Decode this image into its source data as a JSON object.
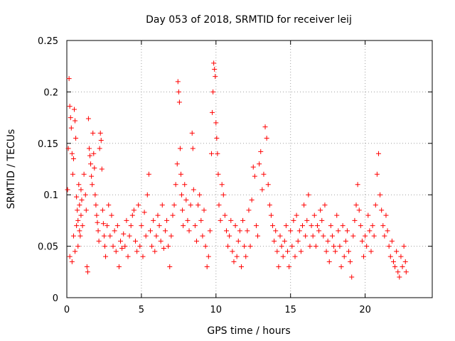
{
  "chart_data": {
    "type": "scatter",
    "title": "Day 053 of 2018, SRMTID for receiver leij",
    "xlabel": "GPS time / hours",
    "ylabel": "SRMTID / TECUs",
    "xlim": [
      0,
      24.5
    ],
    "ylim": [
      0,
      0.25
    ],
    "xticks": [
      0,
      5,
      10,
      15,
      20
    ],
    "xtick_labels": [
      "0",
      "5",
      "10",
      "15",
      "20"
    ],
    "yticks": [
      0,
      0.05,
      0.1,
      0.15,
      0.2,
      0.25
    ],
    "ytick_labels": [
      "0",
      "0.05",
      "0.1",
      "0.15",
      "0.2",
      "0.25"
    ],
    "grid": true,
    "marker": "+",
    "color": "#ff0000",
    "series": [
      {
        "name": "leij",
        "points": [
          [
            0.05,
            0.105
          ],
          [
            0.1,
            0.145
          ],
          [
            0.15,
            0.213
          ],
          [
            0.2,
            0.186
          ],
          [
            0.25,
            0.175
          ],
          [
            0.3,
            0.165
          ],
          [
            0.35,
            0.14
          ],
          [
            0.4,
            0.12
          ],
          [
            0.45,
            0.135
          ],
          [
            0.5,
            0.183
          ],
          [
            0.55,
            0.172
          ],
          [
            0.6,
            0.155
          ],
          [
            0.65,
            0.098
          ],
          [
            0.7,
            0.085
          ],
          [
            0.75,
            0.075
          ],
          [
            0.8,
            0.11
          ],
          [
            0.85,
            0.09
          ],
          [
            0.9,
            0.06
          ],
          [
            0.95,
            0.105
          ],
          [
            1.0,
            0.095
          ],
          [
            0.2,
            0.04
          ],
          [
            0.35,
            0.035
          ],
          [
            0.45,
            0.06
          ],
          [
            0.55,
            0.045
          ],
          [
            0.65,
            0.07
          ],
          [
            0.75,
            0.05
          ],
          [
            0.85,
            0.065
          ],
          [
            0.95,
            0.08
          ],
          [
            1.05,
            0.07
          ],
          [
            1.15,
            0.12
          ],
          [
            1.25,
            0.1
          ],
          [
            1.3,
            0.085
          ],
          [
            1.35,
            0.03
          ],
          [
            1.4,
            0.025
          ],
          [
            1.45,
            0.174
          ],
          [
            1.5,
            0.145
          ],
          [
            1.55,
            0.138
          ],
          [
            1.6,
            0.13
          ],
          [
            1.65,
            0.118
          ],
          [
            1.7,
            0.11
          ],
          [
            1.75,
            0.16
          ],
          [
            1.8,
            0.14
          ],
          [
            1.85,
            0.126
          ],
          [
            1.9,
            0.1
          ],
          [
            1.95,
            0.09
          ],
          [
            2.0,
            0.08
          ],
          [
            2.05,
            0.073
          ],
          [
            2.1,
            0.065
          ],
          [
            2.15,
            0.055
          ],
          [
            2.2,
            0.145
          ],
          [
            2.25,
            0.16
          ],
          [
            2.3,
            0.153
          ],
          [
            2.35,
            0.125
          ],
          [
            2.4,
            0.085
          ],
          [
            2.45,
            0.072
          ],
          [
            2.5,
            0.06
          ],
          [
            2.55,
            0.05
          ],
          [
            2.6,
            0.04
          ],
          [
            2.7,
            0.07
          ],
          [
            2.8,
            0.09
          ],
          [
            2.9,
            0.06
          ],
          [
            3.0,
            0.08
          ],
          [
            3.1,
            0.05
          ],
          [
            3.2,
            0.065
          ],
          [
            3.3,
            0.045
          ],
          [
            3.4,
            0.07
          ],
          [
            3.5,
            0.03
          ],
          [
            3.6,
            0.055
          ],
          [
            3.7,
            0.048
          ],
          [
            3.8,
            0.062
          ],
          [
            3.9,
            0.05
          ],
          [
            4.0,
            0.075
          ],
          [
            4.1,
            0.04
          ],
          [
            4.2,
            0.06
          ],
          [
            4.3,
            0.07
          ],
          [
            4.4,
            0.08
          ],
          [
            4.5,
            0.085
          ],
          [
            4.6,
            0.055
          ],
          [
            4.7,
            0.045
          ],
          [
            4.8,
            0.09
          ],
          [
            4.9,
            0.05
          ],
          [
            5.0,
            0.07
          ],
          [
            5.1,
            0.04
          ],
          [
            5.2,
            0.083
          ],
          [
            5.3,
            0.06
          ],
          [
            5.4,
            0.1
          ],
          [
            5.5,
            0.12
          ],
          [
            5.6,
            0.065
          ],
          [
            5.7,
            0.05
          ],
          [
            5.8,
            0.075
          ],
          [
            5.9,
            0.045
          ],
          [
            6.0,
            0.06
          ],
          [
            6.1,
            0.08
          ],
          [
            6.2,
            0.07
          ],
          [
            6.3,
            0.055
          ],
          [
            6.4,
            0.09
          ],
          [
            6.5,
            0.048
          ],
          [
            6.6,
            0.065
          ],
          [
            6.7,
            0.075
          ],
          [
            6.8,
            0.05
          ],
          [
            6.9,
            0.03
          ],
          [
            7.0,
            0.06
          ],
          [
            7.1,
            0.08
          ],
          [
            7.2,
            0.09
          ],
          [
            7.3,
            0.11
          ],
          [
            7.4,
            0.13
          ],
          [
            7.45,
            0.21
          ],
          [
            7.5,
            0.2
          ],
          [
            7.55,
            0.19
          ],
          [
            7.6,
            0.145
          ],
          [
            7.65,
            0.12
          ],
          [
            7.7,
            0.1
          ],
          [
            7.75,
            0.085
          ],
          [
            7.8,
            0.07
          ],
          [
            7.9,
            0.11
          ],
          [
            8.0,
            0.095
          ],
          [
            8.1,
            0.075
          ],
          [
            8.2,
            0.065
          ],
          [
            8.3,
            0.09
          ],
          [
            8.4,
            0.16
          ],
          [
            8.45,
            0.145
          ],
          [
            8.5,
            0.105
          ],
          [
            8.6,
            0.07
          ],
          [
            8.7,
            0.055
          ],
          [
            8.8,
            0.09
          ],
          [
            8.9,
            0.1
          ],
          [
            9.0,
            0.075
          ],
          [
            9.1,
            0.06
          ],
          [
            9.2,
            0.085
          ],
          [
            9.3,
            0.05
          ],
          [
            9.4,
            0.03
          ],
          [
            9.5,
            0.04
          ],
          [
            9.6,
            0.065
          ],
          [
            9.7,
            0.14
          ],
          [
            9.75,
            0.18
          ],
          [
            9.8,
            0.2
          ],
          [
            9.85,
            0.228
          ],
          [
            9.9,
            0.222
          ],
          [
            9.95,
            0.215
          ],
          [
            10.0,
            0.17
          ],
          [
            10.05,
            0.155
          ],
          [
            10.1,
            0.14
          ],
          [
            10.15,
            0.12
          ],
          [
            10.2,
            0.09
          ],
          [
            10.3,
            0.075
          ],
          [
            10.4,
            0.11
          ],
          [
            10.5,
            0.1
          ],
          [
            10.6,
            0.08
          ],
          [
            10.7,
            0.065
          ],
          [
            10.8,
            0.05
          ],
          [
            10.9,
            0.06
          ],
          [
            11.0,
            0.075
          ],
          [
            11.1,
            0.045
          ],
          [
            11.2,
            0.035
          ],
          [
            11.3,
            0.07
          ],
          [
            11.4,
            0.04
          ],
          [
            11.5,
            0.055
          ],
          [
            11.6,
            0.065
          ],
          [
            11.7,
            0.03
          ],
          [
            11.8,
            0.075
          ],
          [
            11.9,
            0.05
          ],
          [
            12.0,
            0.04
          ],
          [
            12.1,
            0.065
          ],
          [
            12.2,
            0.085
          ],
          [
            12.3,
            0.05
          ],
          [
            12.4,
            0.095
          ],
          [
            12.5,
            0.127
          ],
          [
            12.6,
            0.118
          ],
          [
            12.7,
            0.07
          ],
          [
            12.8,
            0.06
          ],
          [
            12.9,
            0.13
          ],
          [
            13.0,
            0.142
          ],
          [
            13.1,
            0.105
          ],
          [
            13.2,
            0.12
          ],
          [
            13.3,
            0.166
          ],
          [
            13.4,
            0.155
          ],
          [
            13.5,
            0.11
          ],
          [
            13.6,
            0.09
          ],
          [
            13.7,
            0.08
          ],
          [
            13.8,
            0.07
          ],
          [
            13.9,
            0.055
          ],
          [
            14.0,
            0.065
          ],
          [
            14.1,
            0.045
          ],
          [
            14.2,
            0.03
          ],
          [
            14.3,
            0.06
          ],
          [
            14.4,
            0.05
          ],
          [
            14.5,
            0.04
          ],
          [
            14.6,
            0.055
          ],
          [
            14.7,
            0.07
          ],
          [
            14.8,
            0.045
          ],
          [
            14.9,
            0.03
          ],
          [
            15.0,
            0.065
          ],
          [
            15.1,
            0.05
          ],
          [
            15.2,
            0.075
          ],
          [
            15.3,
            0.04
          ],
          [
            15.4,
            0.08
          ],
          [
            15.5,
            0.055
          ],
          [
            15.6,
            0.065
          ],
          [
            15.7,
            0.045
          ],
          [
            15.8,
            0.07
          ],
          [
            15.9,
            0.09
          ],
          [
            16.0,
            0.06
          ],
          [
            16.1,
            0.075
          ],
          [
            16.2,
            0.1
          ],
          [
            16.3,
            0.05
          ],
          [
            16.4,
            0.07
          ],
          [
            16.5,
            0.06
          ],
          [
            16.6,
            0.08
          ],
          [
            16.7,
            0.05
          ],
          [
            16.8,
            0.07
          ],
          [
            16.9,
            0.065
          ],
          [
            17.0,
            0.085
          ],
          [
            17.1,
            0.075
          ],
          [
            17.2,
            0.06
          ],
          [
            17.3,
            0.09
          ],
          [
            17.4,
            0.045
          ],
          [
            17.5,
            0.055
          ],
          [
            17.6,
            0.035
          ],
          [
            17.7,
            0.07
          ],
          [
            17.8,
            0.06
          ],
          [
            17.9,
            0.05
          ],
          [
            18.0,
            0.045
          ],
          [
            18.1,
            0.08
          ],
          [
            18.2,
            0.065
          ],
          [
            18.3,
            0.05
          ],
          [
            18.4,
            0.03
          ],
          [
            18.5,
            0.07
          ],
          [
            18.6,
            0.04
          ],
          [
            18.7,
            0.055
          ],
          [
            18.8,
            0.065
          ],
          [
            18.9,
            0.045
          ],
          [
            19.0,
            0.035
          ],
          [
            19.1,
            0.02
          ],
          [
            19.2,
            0.06
          ],
          [
            19.3,
            0.075
          ],
          [
            19.4,
            0.09
          ],
          [
            19.5,
            0.11
          ],
          [
            19.6,
            0.085
          ],
          [
            19.7,
            0.07
          ],
          [
            19.8,
            0.055
          ],
          [
            19.9,
            0.04
          ],
          [
            20.0,
            0.06
          ],
          [
            20.1,
            0.05
          ],
          [
            20.2,
            0.08
          ],
          [
            20.3,
            0.065
          ],
          [
            20.4,
            0.045
          ],
          [
            20.5,
            0.07
          ],
          [
            20.6,
            0.06
          ],
          [
            20.7,
            0.09
          ],
          [
            20.8,
            0.12
          ],
          [
            20.9,
            0.14
          ],
          [
            21.0,
            0.1
          ],
          [
            21.1,
            0.085
          ],
          [
            21.2,
            0.07
          ],
          [
            21.3,
            0.06
          ],
          [
            21.4,
            0.08
          ],
          [
            21.5,
            0.065
          ],
          [
            21.6,
            0.05
          ],
          [
            21.7,
            0.04
          ],
          [
            21.8,
            0.055
          ],
          [
            21.9,
            0.035
          ],
          [
            22.0,
            0.03
          ],
          [
            22.1,
            0.045
          ],
          [
            22.2,
            0.025
          ],
          [
            22.3,
            0.02
          ],
          [
            22.4,
            0.04
          ],
          [
            22.5,
            0.03
          ],
          [
            22.6,
            0.05
          ],
          [
            22.7,
            0.035
          ],
          [
            22.75,
            0.025
          ]
        ]
      }
    ]
  }
}
